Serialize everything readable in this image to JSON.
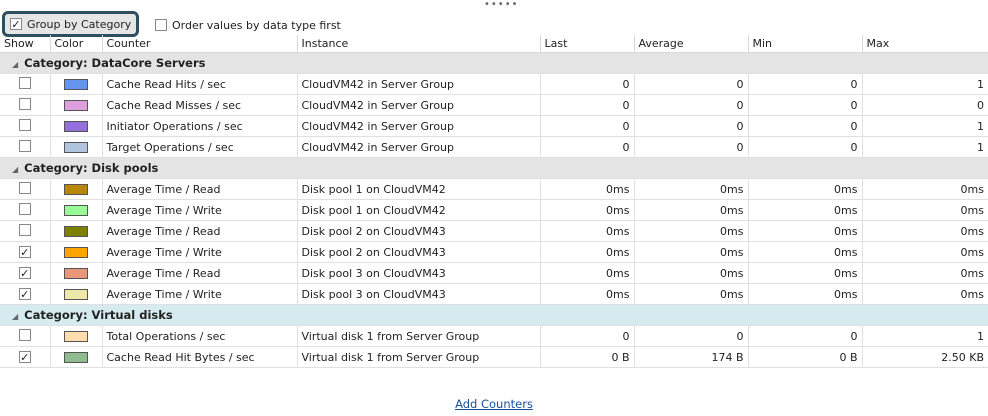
{
  "options": {
    "group_by_category": {
      "label": "Group by Category",
      "checked": true
    },
    "order_by_type": {
      "label": "Order values by data type first",
      "checked": false
    }
  },
  "columns": [
    "Show",
    "Color",
    "Counter",
    "Instance",
    "Last",
    "Average",
    "Min",
    "Max"
  ],
  "categories": [
    {
      "label": "Category: DataCore Servers",
      "rows": [
        {
          "show": false,
          "color": "#6495ed",
          "counter": "Cache Read Hits / sec",
          "instance": "CloudVM42 in Server Group",
          "last": "0",
          "average": "0",
          "min": "0",
          "max": "1"
        },
        {
          "show": false,
          "color": "#dda0dd",
          "counter": "Cache Read Misses / sec",
          "instance": "CloudVM42 in Server Group",
          "last": "0",
          "average": "0",
          "min": "0",
          "max": "0"
        },
        {
          "show": false,
          "color": "#9370db",
          "counter": "Initiator Operations / sec",
          "instance": "CloudVM42 in Server Group",
          "last": "0",
          "average": "0",
          "min": "0",
          "max": "1"
        },
        {
          "show": false,
          "color": "#b0c4de",
          "counter": "Target Operations / sec",
          "instance": "CloudVM42 in Server Group",
          "last": "0",
          "average": "0",
          "min": "0",
          "max": "1"
        }
      ]
    },
    {
      "label": "Category: Disk pools",
      "rows": [
        {
          "show": false,
          "color": "#b8860b",
          "counter": "Average Time / Read",
          "instance": "Disk pool 1 on CloudVM42",
          "last": "0ms",
          "average": "0ms",
          "min": "0ms",
          "max": "0ms"
        },
        {
          "show": false,
          "color": "#98fb98",
          "counter": "Average Time / Write",
          "instance": "Disk pool 1 on CloudVM42",
          "last": "0ms",
          "average": "0ms",
          "min": "0ms",
          "max": "0ms"
        },
        {
          "show": false,
          "color": "#808000",
          "counter": "Average Time / Read",
          "instance": "Disk pool 2 on CloudVM43",
          "last": "0ms",
          "average": "0ms",
          "min": "0ms",
          "max": "0ms"
        },
        {
          "show": true,
          "color": "#ffa500",
          "counter": "Average Time / Write",
          "instance": "Disk pool 2 on CloudVM43",
          "last": "0ms",
          "average": "0ms",
          "min": "0ms",
          "max": "0ms"
        },
        {
          "show": true,
          "color": "#e9967a",
          "counter": "Average Time / Read",
          "instance": "Disk pool 3 on CloudVM43",
          "last": "0ms",
          "average": "0ms",
          "min": "0ms",
          "max": "0ms"
        },
        {
          "show": true,
          "color": "#eee8aa",
          "counter": "Average Time / Write",
          "instance": "Disk pool 3 on CloudVM43",
          "last": "0ms",
          "average": "0ms",
          "min": "0ms",
          "max": "0ms"
        }
      ]
    },
    {
      "label": "Category: Virtual disks",
      "rows": [
        {
          "show": false,
          "color": "#ffdead",
          "counter": "Total Operations / sec",
          "instance": "Virtual disk 1 from Server Group",
          "last": "0",
          "average": "0",
          "min": "0",
          "max": "1"
        },
        {
          "show": true,
          "color": "#8fbc8f",
          "counter": "Cache Read Hit Bytes / sec",
          "instance": "Virtual disk 1 from Server Group",
          "last": "0 B",
          "average": "174 B",
          "min": "0 B",
          "max": "2.50 KB"
        }
      ]
    }
  ],
  "add_counters": "Add Counters"
}
